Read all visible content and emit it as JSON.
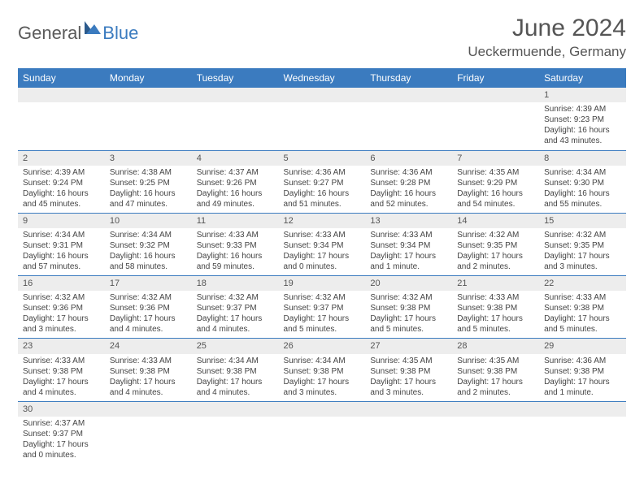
{
  "logo": {
    "text1": "General",
    "text2": "Blue"
  },
  "title": "June 2024",
  "location": "Ueckermuende, Germany",
  "colors": {
    "header_bg": "#3b7bbf",
    "daynum_bg": "#ededed",
    "row_border": "#3b7bbf"
  },
  "day_names": [
    "Sunday",
    "Monday",
    "Tuesday",
    "Wednesday",
    "Thursday",
    "Friday",
    "Saturday"
  ],
  "weeks": [
    [
      null,
      null,
      null,
      null,
      null,
      null,
      {
        "n": "1",
        "sr": "Sunrise: 4:39 AM",
        "ss": "Sunset: 9:23 PM",
        "dl": "Daylight: 16 hours and 43 minutes."
      }
    ],
    [
      {
        "n": "2",
        "sr": "Sunrise: 4:39 AM",
        "ss": "Sunset: 9:24 PM",
        "dl": "Daylight: 16 hours and 45 minutes."
      },
      {
        "n": "3",
        "sr": "Sunrise: 4:38 AM",
        "ss": "Sunset: 9:25 PM",
        "dl": "Daylight: 16 hours and 47 minutes."
      },
      {
        "n": "4",
        "sr": "Sunrise: 4:37 AM",
        "ss": "Sunset: 9:26 PM",
        "dl": "Daylight: 16 hours and 49 minutes."
      },
      {
        "n": "5",
        "sr": "Sunrise: 4:36 AM",
        "ss": "Sunset: 9:27 PM",
        "dl": "Daylight: 16 hours and 51 minutes."
      },
      {
        "n": "6",
        "sr": "Sunrise: 4:36 AM",
        "ss": "Sunset: 9:28 PM",
        "dl": "Daylight: 16 hours and 52 minutes."
      },
      {
        "n": "7",
        "sr": "Sunrise: 4:35 AM",
        "ss": "Sunset: 9:29 PM",
        "dl": "Daylight: 16 hours and 54 minutes."
      },
      {
        "n": "8",
        "sr": "Sunrise: 4:34 AM",
        "ss": "Sunset: 9:30 PM",
        "dl": "Daylight: 16 hours and 55 minutes."
      }
    ],
    [
      {
        "n": "9",
        "sr": "Sunrise: 4:34 AM",
        "ss": "Sunset: 9:31 PM",
        "dl": "Daylight: 16 hours and 57 minutes."
      },
      {
        "n": "10",
        "sr": "Sunrise: 4:34 AM",
        "ss": "Sunset: 9:32 PM",
        "dl": "Daylight: 16 hours and 58 minutes."
      },
      {
        "n": "11",
        "sr": "Sunrise: 4:33 AM",
        "ss": "Sunset: 9:33 PM",
        "dl": "Daylight: 16 hours and 59 minutes."
      },
      {
        "n": "12",
        "sr": "Sunrise: 4:33 AM",
        "ss": "Sunset: 9:34 PM",
        "dl": "Daylight: 17 hours and 0 minutes."
      },
      {
        "n": "13",
        "sr": "Sunrise: 4:33 AM",
        "ss": "Sunset: 9:34 PM",
        "dl": "Daylight: 17 hours and 1 minute."
      },
      {
        "n": "14",
        "sr": "Sunrise: 4:32 AM",
        "ss": "Sunset: 9:35 PM",
        "dl": "Daylight: 17 hours and 2 minutes."
      },
      {
        "n": "15",
        "sr": "Sunrise: 4:32 AM",
        "ss": "Sunset: 9:35 PM",
        "dl": "Daylight: 17 hours and 3 minutes."
      }
    ],
    [
      {
        "n": "16",
        "sr": "Sunrise: 4:32 AM",
        "ss": "Sunset: 9:36 PM",
        "dl": "Daylight: 17 hours and 3 minutes."
      },
      {
        "n": "17",
        "sr": "Sunrise: 4:32 AM",
        "ss": "Sunset: 9:36 PM",
        "dl": "Daylight: 17 hours and 4 minutes."
      },
      {
        "n": "18",
        "sr": "Sunrise: 4:32 AM",
        "ss": "Sunset: 9:37 PM",
        "dl": "Daylight: 17 hours and 4 minutes."
      },
      {
        "n": "19",
        "sr": "Sunrise: 4:32 AM",
        "ss": "Sunset: 9:37 PM",
        "dl": "Daylight: 17 hours and 5 minutes."
      },
      {
        "n": "20",
        "sr": "Sunrise: 4:32 AM",
        "ss": "Sunset: 9:38 PM",
        "dl": "Daylight: 17 hours and 5 minutes."
      },
      {
        "n": "21",
        "sr": "Sunrise: 4:33 AM",
        "ss": "Sunset: 9:38 PM",
        "dl": "Daylight: 17 hours and 5 minutes."
      },
      {
        "n": "22",
        "sr": "Sunrise: 4:33 AM",
        "ss": "Sunset: 9:38 PM",
        "dl": "Daylight: 17 hours and 5 minutes."
      }
    ],
    [
      {
        "n": "23",
        "sr": "Sunrise: 4:33 AM",
        "ss": "Sunset: 9:38 PM",
        "dl": "Daylight: 17 hours and 4 minutes."
      },
      {
        "n": "24",
        "sr": "Sunrise: 4:33 AM",
        "ss": "Sunset: 9:38 PM",
        "dl": "Daylight: 17 hours and 4 minutes."
      },
      {
        "n": "25",
        "sr": "Sunrise: 4:34 AM",
        "ss": "Sunset: 9:38 PM",
        "dl": "Daylight: 17 hours and 4 minutes."
      },
      {
        "n": "26",
        "sr": "Sunrise: 4:34 AM",
        "ss": "Sunset: 9:38 PM",
        "dl": "Daylight: 17 hours and 3 minutes."
      },
      {
        "n": "27",
        "sr": "Sunrise: 4:35 AM",
        "ss": "Sunset: 9:38 PM",
        "dl": "Daylight: 17 hours and 3 minutes."
      },
      {
        "n": "28",
        "sr": "Sunrise: 4:35 AM",
        "ss": "Sunset: 9:38 PM",
        "dl": "Daylight: 17 hours and 2 minutes."
      },
      {
        "n": "29",
        "sr": "Sunrise: 4:36 AM",
        "ss": "Sunset: 9:38 PM",
        "dl": "Daylight: 17 hours and 1 minute."
      }
    ],
    [
      {
        "n": "30",
        "sr": "Sunrise: 4:37 AM",
        "ss": "Sunset: 9:37 PM",
        "dl": "Daylight: 17 hours and 0 minutes."
      },
      null,
      null,
      null,
      null,
      null,
      null
    ]
  ]
}
